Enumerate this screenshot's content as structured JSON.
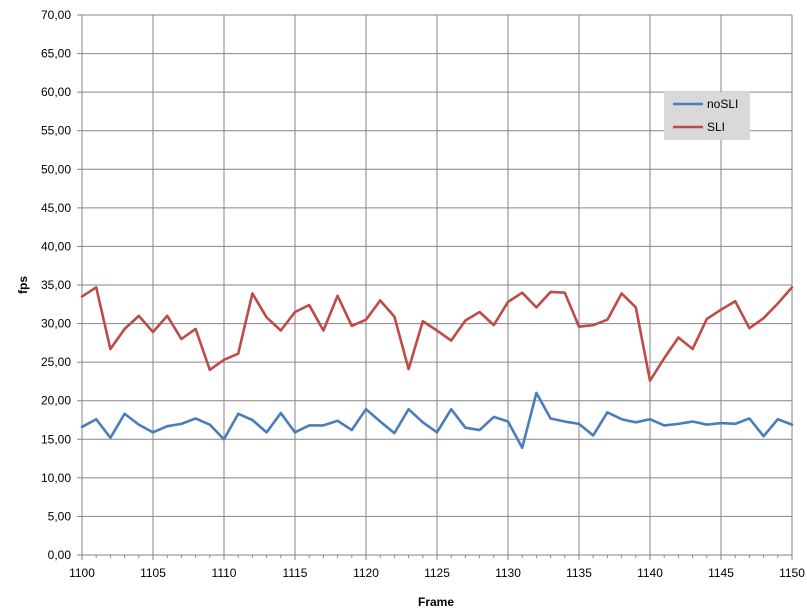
{
  "chart_data": {
    "type": "line",
    "xlabel": "Frame",
    "ylabel": "fps",
    "xlim": [
      1100,
      1150
    ],
    "ylim": [
      0,
      70
    ],
    "x_tick_step": 5,
    "y_tick_step": 5,
    "grid": true,
    "legend_position": "top-right",
    "x": [
      1100,
      1101,
      1102,
      1103,
      1104,
      1105,
      1106,
      1107,
      1108,
      1109,
      1110,
      1111,
      1112,
      1113,
      1114,
      1115,
      1116,
      1117,
      1118,
      1119,
      1120,
      1121,
      1122,
      1123,
      1124,
      1125,
      1126,
      1127,
      1128,
      1129,
      1130,
      1131,
      1132,
      1133,
      1134,
      1135,
      1136,
      1137,
      1138,
      1139,
      1140,
      1141,
      1142,
      1143,
      1144,
      1145,
      1146,
      1147,
      1148,
      1149,
      1150
    ],
    "series": [
      {
        "name": "noSLI",
        "color": "#4a7ebb",
        "values": [
          16.6,
          17.6,
          15.2,
          18.3,
          16.9,
          15.9,
          16.7,
          17.0,
          17.7,
          16.9,
          15.0,
          18.3,
          17.5,
          15.9,
          18.4,
          15.9,
          16.8,
          16.8,
          17.4,
          16.2,
          18.9,
          17.3,
          15.8,
          18.9,
          17.2,
          15.9,
          18.9,
          16.5,
          16.2,
          17.9,
          17.3,
          13.9,
          21.0,
          17.7,
          17.3,
          17.0,
          15.5,
          18.5,
          17.6,
          17.2,
          17.6,
          16.8,
          17.0,
          17.3,
          16.9,
          17.1,
          17.0,
          17.7,
          15.4,
          17.6,
          16.9
        ]
      },
      {
        "name": "SLI",
        "color": "#be4b48",
        "values": [
          33.5,
          34.7,
          26.7,
          29.3,
          31.0,
          28.9,
          31.0,
          28.0,
          29.3,
          24.0,
          25.3,
          26.1,
          33.9,
          30.8,
          29.1,
          31.5,
          32.4,
          29.1,
          33.6,
          29.7,
          30.5,
          33.0,
          30.9,
          24.1,
          30.3,
          29.1,
          27.8,
          30.4,
          31.5,
          29.8,
          32.8,
          34.0,
          32.1,
          34.1,
          34.0,
          29.6,
          29.8,
          30.5,
          33.9,
          32.1,
          22.6,
          25.5,
          28.2,
          26.7,
          30.6,
          31.8,
          32.9,
          29.4,
          30.7,
          32.6,
          34.7
        ]
      }
    ],
    "y_tick_labels": [
      "0,00",
      "5,00",
      "10,00",
      "15,00",
      "20,00",
      "25,00",
      "30,00",
      "35,00",
      "40,00",
      "45,00",
      "50,00",
      "55,00",
      "60,00",
      "65,00",
      "70,00"
    ],
    "x_tick_labels": [
      "1100",
      "1105",
      "1110",
      "1115",
      "1120",
      "1125",
      "1130",
      "1135",
      "1140",
      "1145",
      "1150"
    ]
  }
}
